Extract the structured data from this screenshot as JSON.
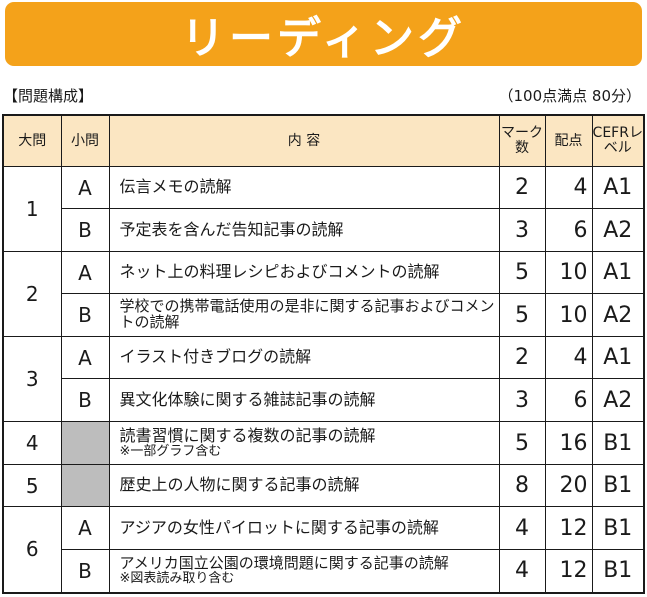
{
  "title": "リーディング",
  "subheading": "【問題構成】",
  "score_note": "（100点満点 80分）",
  "colors": {
    "banner": "#f4a21a",
    "header_bg": "#fbe6c2",
    "empty_cell": "#bdbdbd"
  },
  "headers": {
    "major": "大問",
    "minor": "小問",
    "content": "内 容",
    "marks": "マーク数",
    "points": "配点",
    "cefr": "CEFRレベル"
  },
  "rows": [
    {
      "major": "1",
      "minor": "A",
      "content": "伝言メモの読解",
      "note": "",
      "marks": "2",
      "points": "4",
      "cefr": "A1"
    },
    {
      "major": "",
      "minor": "B",
      "content": "予定表を含んだ告知記事の読解",
      "note": "",
      "marks": "3",
      "points": "6",
      "cefr": "A2"
    },
    {
      "major": "2",
      "minor": "A",
      "content": "ネット上の料理レシピおよびコメントの読解",
      "note": "",
      "marks": "5",
      "points": "10",
      "cefr": "A1"
    },
    {
      "major": "",
      "minor": "B",
      "content": "学校での携帯電話使用の是非に関する記事およびコメントの読解",
      "note": "",
      "marks": "5",
      "points": "10",
      "cefr": "A2"
    },
    {
      "major": "3",
      "minor": "A",
      "content": "イラスト付きブログの読解",
      "note": "",
      "marks": "2",
      "points": "4",
      "cefr": "A1"
    },
    {
      "major": "",
      "minor": "B",
      "content": "異文化体験に関する雑誌記事の読解",
      "note": "",
      "marks": "3",
      "points": "6",
      "cefr": "A2"
    },
    {
      "major": "4",
      "minor": "",
      "content": "読書習慣に関する複数の記事の読解",
      "note": "※一部グラフ含む",
      "marks": "5",
      "points": "16",
      "cefr": "B1"
    },
    {
      "major": "5",
      "minor": "",
      "content": "歴史上の人物に関する記事の読解",
      "note": "",
      "marks": "8",
      "points": "20",
      "cefr": "B1"
    },
    {
      "major": "6",
      "minor": "A",
      "content": "アジアの女性パイロットに関する記事の読解",
      "note": "",
      "marks": "4",
      "points": "12",
      "cefr": "B1"
    },
    {
      "major": "",
      "minor": "B",
      "content": "アメリカ国立公園の環境問題に関する記事の読解",
      "note": "※図表読み取り含む",
      "marks": "4",
      "points": "12",
      "cefr": "B1"
    }
  ]
}
